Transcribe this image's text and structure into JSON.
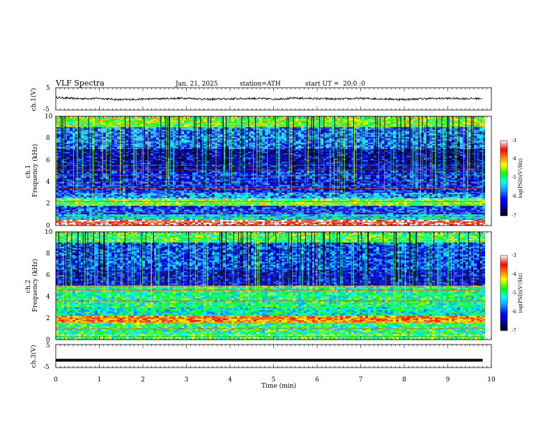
{
  "header": {
    "title": "VLF Spectra",
    "date": "Jan. 21, 2025",
    "station": "station=ATH",
    "start": "start UT =  20:0 :0"
  },
  "chart_data": [
    {
      "type": "line",
      "title": "",
      "ylabel": "ch.1(V)",
      "ylim": [
        -5,
        5
      ],
      "yticks": [
        "5",
        "-5"
      ],
      "x": [
        0,
        0.5,
        1,
        1.5,
        2,
        2.5,
        3,
        3.5,
        4,
        4.5,
        5,
        5.5,
        6,
        6.5,
        7,
        7.5,
        8,
        8.5,
        9,
        9.5,
        9.8
      ],
      "values": [
        0.6,
        0.1,
        0.2,
        -0.4,
        -0.1,
        0.1,
        0.3,
        -0.2,
        0.0,
        0.2,
        -0.1,
        0.3,
        0.1,
        -0.1,
        0.2,
        0.0,
        -0.3,
        0.1,
        0.2,
        0.1,
        0.2
      ]
    },
    {
      "type": "heatmap",
      "title": "",
      "ylabel": "ch.1\nFrequency (kHz)",
      "ylim": [
        0,
        10
      ],
      "yticks": [
        "10",
        "8",
        "6",
        "4",
        "2",
        "0"
      ],
      "colorbar": {
        "label": "log(PSD)(V²/Hz)",
        "range": [
          -7,
          -3
        ],
        "ticks": [
          "-3",
          "-4",
          "-5",
          "-6",
          "-7"
        ]
      },
      "bands": [
        {
          "f_low": 9.0,
          "f_high": 10.0,
          "level": -4.6
        },
        {
          "f_low": 7.0,
          "f_high": 9.0,
          "level": -5.8
        },
        {
          "f_low": 5.0,
          "f_high": 7.0,
          "level": -6.4
        },
        {
          "f_low": 3.0,
          "f_high": 5.0,
          "level": -6.1
        },
        {
          "f_low": 2.5,
          "f_high": 3.0,
          "level": -5.6
        },
        {
          "f_low": 1.8,
          "f_high": 2.5,
          "level": -4.6
        },
        {
          "f_low": 1.0,
          "f_high": 1.8,
          "level": -6.0
        },
        {
          "f_low": 0.5,
          "f_high": 1.0,
          "level": -5.3
        },
        {
          "f_low": 0.0,
          "f_high": 0.5,
          "level": -3.3
        }
      ],
      "lines_khz": [
        0.3,
        0.8,
        1.2,
        2.2,
        3.4,
        3.6,
        4.0,
        4.6,
        5.1,
        5.5
      ]
    },
    {
      "type": "heatmap",
      "title": "",
      "ylabel": "ch.2\nFrequency (kHz)",
      "ylim": [
        0,
        10
      ],
      "yticks": [
        "10",
        "8",
        "6",
        "4",
        "2",
        "0"
      ],
      "colorbar": {
        "label": "log(PSD)(V²/Hz)",
        "range": [
          -7,
          -3
        ],
        "ticks": [
          "-3",
          "-4",
          "-5",
          "-6",
          "-7"
        ]
      },
      "bands": [
        {
          "f_low": 9.0,
          "f_high": 10.0,
          "level": -4.8
        },
        {
          "f_low": 6.5,
          "f_high": 9.0,
          "level": -5.9
        },
        {
          "f_low": 5.0,
          "f_high": 6.5,
          "level": -6.3
        },
        {
          "f_low": 3.0,
          "f_high": 5.0,
          "level": -5.0
        },
        {
          "f_low": 2.2,
          "f_high": 3.0,
          "level": -5.2
        },
        {
          "f_low": 1.6,
          "f_high": 2.2,
          "level": -3.9
        },
        {
          "f_low": 0.5,
          "f_high": 1.6,
          "level": -5.0
        },
        {
          "f_low": 0.0,
          "f_high": 0.5,
          "level": -4.8
        }
      ],
      "lines_khz": [
        0.3,
        1.0,
        2.0,
        3.6,
        4.6,
        5.0
      ]
    },
    {
      "type": "line",
      "title": "",
      "ylabel": "ch.3(V)",
      "ylim": [
        -5,
        5
      ],
      "yticks": [
        "5",
        "-5"
      ],
      "x": [
        0,
        9.8
      ],
      "values": [
        -1.8,
        -1.8
      ]
    }
  ],
  "xaxis": {
    "label": "Time (min)",
    "range": [
      0,
      10
    ],
    "ticks": [
      "0",
      "1",
      "2",
      "3",
      "4",
      "5",
      "6",
      "7",
      "8",
      "9",
      "10"
    ]
  },
  "colors": {
    "line": "#000000",
    "colormap": [
      "#000000",
      "#00008b",
      "#0000ff",
      "#1e90ff",
      "#00ffff",
      "#00ff00",
      "#ffff00",
      "#ff7f00",
      "#ff0000",
      "#ffffff"
    ]
  }
}
